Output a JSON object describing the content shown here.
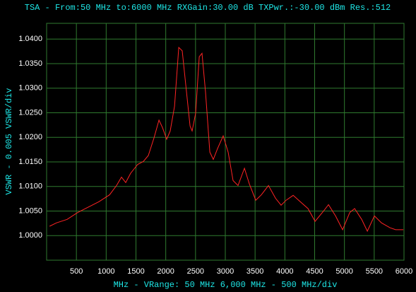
{
  "chart_data": {
    "type": "line",
    "title": "TSA - From:50 MHz to:6000 MHz RXGain:30.00 dB TXPwr.:-30.00 dBm Res.:512",
    "xlabel": "MHz - VRange: 50 MHz 6,000 MHz - 500 MHz/div",
    "ylabel": "VSWR - 0.005 VSWR/div",
    "x": [
      50,
      166,
      344,
      522,
      700,
      878,
      1056,
      1174,
      1257,
      1328,
      1411,
      1530,
      1625,
      1708,
      1803,
      1886,
      1945,
      2016,
      2075,
      2147,
      2218,
      2277,
      2336,
      2408,
      2443,
      2502,
      2562,
      2609,
      2668,
      2740,
      2799,
      2870,
      2965,
      3048,
      3131,
      3214,
      3321,
      3404,
      3511,
      3605,
      3724,
      3843,
      3937,
      4021,
      4139,
      4258,
      4388,
      4507,
      4649,
      4732,
      4851,
      4970,
      5089,
      5171,
      5290,
      5385,
      5503,
      5622,
      5764,
      5859,
      5989
    ],
    "series": [
      {
        "name": "VSWR",
        "color": "#ff2424",
        "values": [
          1.0019,
          1.0026,
          1.0033,
          1.0047,
          1.0058,
          1.0069,
          1.0083,
          1.0102,
          1.0119,
          1.0108,
          1.0127,
          1.0145,
          1.0151,
          1.0163,
          1.0199,
          1.0235,
          1.022,
          1.0196,
          1.0213,
          1.0263,
          1.0383,
          1.0376,
          1.0307,
          1.0223,
          1.0213,
          1.0249,
          1.0364,
          1.0371,
          1.0292,
          1.017,
          1.0155,
          1.0177,
          1.0203,
          1.017,
          1.0112,
          1.0102,
          1.0137,
          1.0105,
          1.0072,
          1.0083,
          1.0102,
          1.0076,
          1.0062,
          1.0072,
          1.0082,
          1.0069,
          1.0055,
          1.0029,
          1.005,
          1.0063,
          1.004,
          1.0012,
          1.0047,
          1.0055,
          1.0033,
          1.0009,
          1.004,
          1.0026,
          1.0016,
          1.0012,
          1.0012
        ]
      }
    ],
    "xlim": [
      0,
      6000
    ],
    "xticks": [
      500,
      1000,
      1500,
      2000,
      2500,
      3000,
      3500,
      4000,
      4500,
      5000,
      5500,
      6000
    ],
    "ylim": [
      0.995,
      1.0432
    ],
    "yticks": [
      {
        "value": 1.0,
        "label": "1.0000"
      },
      {
        "value": 1.005,
        "label": "1.0050"
      },
      {
        "value": 1.01,
        "label": "1.0100"
      },
      {
        "value": 1.015,
        "label": "1.0150"
      },
      {
        "value": 1.02,
        "label": "1.0200"
      },
      {
        "value": 1.025,
        "label": "1.0250"
      },
      {
        "value": 1.03,
        "label": "1.0300"
      },
      {
        "value": 1.035,
        "label": "1.0350"
      },
      {
        "value": 1.04,
        "label": "1.0400"
      }
    ],
    "grid": true,
    "grid_color": "#2f7a2f"
  }
}
